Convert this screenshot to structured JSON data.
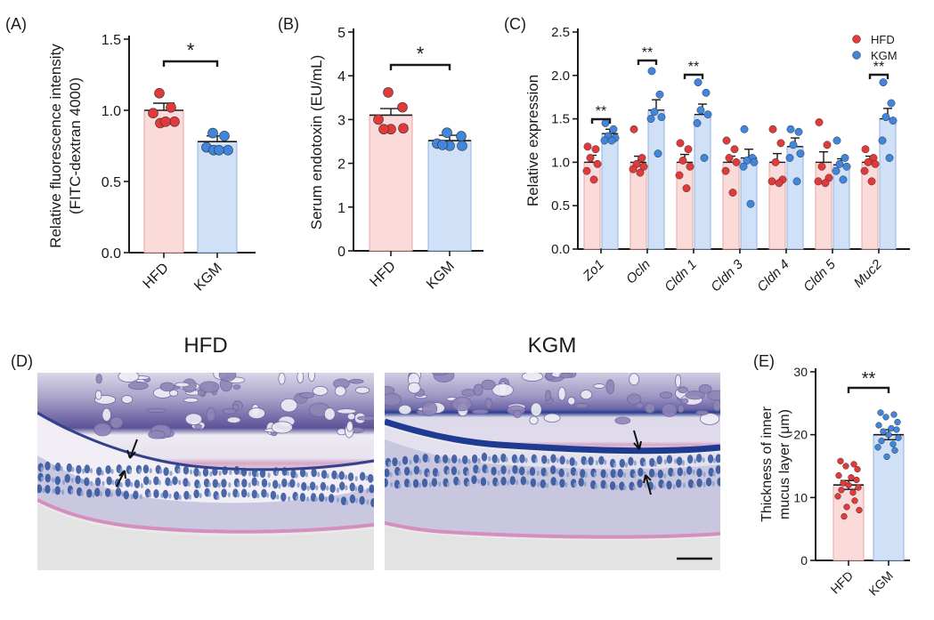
{
  "colors": {
    "hfd_fill": "#fbdada",
    "hfd_edge": "#e8a4a4",
    "hfd_dot": "#e23a3a",
    "kgm_fill": "#cfe0f7",
    "kgm_edge": "#8fb3e3",
    "kgm_dot": "#3f86dc",
    "tissue_purple": "#7a6fa8",
    "mucus_blue": "#253f91"
  },
  "panels": {
    "A": {
      "label": "(A)"
    },
    "B": {
      "label": "(B)"
    },
    "C": {
      "label": "(C)"
    },
    "D": {
      "label": "(D)",
      "title_left": "HFD",
      "title_right": "KGM"
    },
    "E": {
      "label": "(E)"
    }
  },
  "chart_data": [
    {
      "panel": "A",
      "type": "bar",
      "categories": [
        "HFD",
        "KGM"
      ],
      "values": [
        1.0,
        0.78
      ],
      "sem": [
        0.05,
        0.04
      ],
      "points": [
        [
          1.12,
          1.02,
          0.98,
          0.92,
          0.91,
          0.92
        ],
        [
          0.84,
          0.82,
          0.74,
          0.72,
          0.72,
          0.72
        ]
      ],
      "ylabel_line1": "Relative fluorescence intensity",
      "ylabel_line2": "(FITC-dextran 4000)",
      "yticks": [
        "0.0",
        "0.5",
        "1.0",
        "1.5"
      ],
      "ylim": [
        0,
        1.5
      ],
      "significance": "*"
    },
    {
      "panel": "B",
      "type": "bar",
      "categories": [
        "HFD",
        "KGM"
      ],
      "values": [
        3.1,
        2.52
      ],
      "sem": [
        0.15,
        0.12
      ],
      "points": [
        [
          3.62,
          3.28,
          3.0,
          2.78,
          2.8,
          2.78
        ],
        [
          2.7,
          2.62,
          2.45,
          2.4,
          2.4,
          2.42
        ]
      ],
      "ylabel": "Serum endotoxin (EU/mL)",
      "yticks": [
        "0",
        "1",
        "2",
        "3",
        "4",
        "5"
      ],
      "ylim": [
        0,
        5
      ],
      "significance": "*"
    },
    {
      "panel": "C",
      "type": "bar",
      "categories": [
        "Zo1",
        "Ocln",
        "Cldn 1",
        "Cldn 3",
        "Cldn 4",
        "Cldn 5",
        "Muc2"
      ],
      "series": [
        {
          "name": "HFD",
          "values": [
            1.0,
            1.0,
            1.0,
            1.0,
            1.0,
            1.0,
            1.0
          ],
          "sem": [
            0.08,
            0.07,
            0.09,
            0.07,
            0.1,
            0.12,
            0.07
          ],
          "points": [
            [
              1.18,
              1.15,
              1.05,
              0.98,
              0.9,
              0.8
            ],
            [
              1.38,
              1.05,
              0.98,
              0.95,
              0.92,
              0.88
            ],
            [
              1.22,
              1.15,
              1.02,
              0.95,
              0.85,
              0.7
            ],
            [
              1.25,
              1.15,
              1.05,
              1.0,
              0.9,
              0.65
            ],
            [
              1.38,
              1.22,
              1.0,
              0.8,
              0.78,
              0.76
            ],
            [
              1.46,
              1.2,
              0.95,
              0.82,
              0.78,
              0.76
            ],
            [
              1.15,
              1.05,
              1.0,
              0.98,
              0.9,
              0.78
            ]
          ]
        },
        {
          "name": "KGM",
          "values": [
            1.33,
            1.6,
            1.55,
            1.05,
            1.18,
            0.97,
            1.5
          ],
          "sem": [
            0.05,
            0.12,
            0.12,
            0.1,
            0.1,
            0.07,
            0.12
          ],
          "points": [
            [
              1.45,
              1.38,
              1.3,
              1.28,
              1.25,
              1.25
            ],
            [
              2.05,
              1.78,
              1.58,
              1.52,
              1.5,
              1.1
            ],
            [
              1.92,
              1.8,
              1.6,
              1.55,
              1.45,
              1.05
            ],
            [
              1.38,
              1.05,
              1.02,
              1.0,
              0.95,
              0.52
            ],
            [
              1.38,
              1.35,
              1.2,
              1.1,
              1.05,
              0.78
            ],
            [
              1.25,
              1.05,
              0.98,
              0.95,
              0.9,
              0.8
            ],
            [
              1.92,
              1.68,
              1.52,
              1.48,
              1.25,
              1.05
            ]
          ]
        }
      ],
      "ylabel": "Relative expression",
      "yticks": [
        "0.0",
        "0.5",
        "1.0",
        "1.5",
        "2.0",
        "2.5"
      ],
      "ylim": [
        0,
        2.5
      ],
      "significance": [
        "**",
        "**",
        "**",
        "",
        "",
        "",
        "**"
      ],
      "legend": [
        "HFD",
        "KGM"
      ],
      "legend_position": "top-right"
    },
    {
      "panel": "E",
      "type": "bar",
      "categories": [
        "HFD",
        "KGM"
      ],
      "values": [
        12.0,
        20.0
      ],
      "sem": [
        0.7,
        0.8
      ],
      "points": [
        [
          15.8,
          15.3,
          15.0,
          14.5,
          13.5,
          13.2,
          12.8,
          12.3,
          12.0,
          11.6,
          11.2,
          10.8,
          10.2,
          9.5,
          8.5,
          8.0,
          7.0
        ],
        [
          23.5,
          23.2,
          22.8,
          22.0,
          21.5,
          21.0,
          20.8,
          20.5,
          20.0,
          19.5,
          19.0,
          18.5,
          18.0,
          17.5,
          16.5
        ]
      ],
      "ylabel_line1": "Thickness of inner",
      "ylabel_line2": "mucus layer (μm)",
      "yticks": [
        "0",
        "10",
        "20",
        "30"
      ],
      "ylim": [
        0,
        30
      ],
      "significance": "**"
    }
  ]
}
